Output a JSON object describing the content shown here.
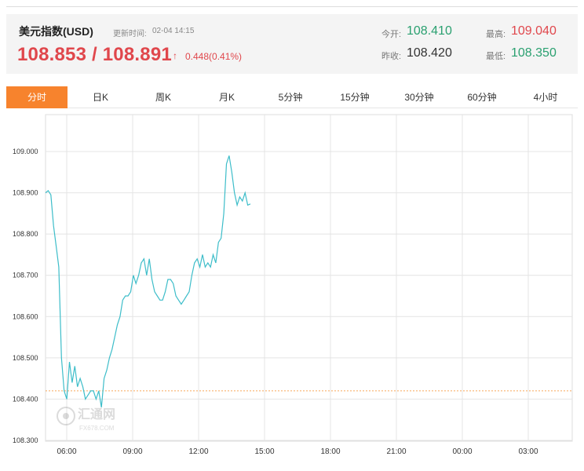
{
  "header": {
    "title": "美元指数(USD)",
    "update_label": "更新时间:",
    "update_time": "02-04 14:15",
    "price": "108.853 / 108.891",
    "arrow": "↑",
    "change": "0.448(0.41%)"
  },
  "stats": {
    "open_label": "今开:",
    "open_value": "108.410",
    "prev_close_label": "昨收:",
    "prev_close_value": "108.420",
    "high_label": "最高:",
    "high_value": "109.040",
    "low_label": "最低:",
    "low_value": "108.350"
  },
  "tabs": [
    "分时",
    "日K",
    "周K",
    "月K",
    "5分钟",
    "15分钟",
    "30分钟",
    "60分钟",
    "4小时"
  ],
  "active_tab": 0,
  "colors": {
    "accent": "#f7832d",
    "line": "#3dbdc9",
    "up": "#e0474c",
    "down": "#2aa070",
    "ref_line": "#f7a85a"
  },
  "watermark": {
    "text": "汇通网",
    "sub": "FX678.COM"
  },
  "chart_data": {
    "type": "line",
    "title": "",
    "xlabel": "",
    "ylabel": "",
    "x_ticks": [
      "06:00",
      "09:00",
      "12:00",
      "15:00",
      "18:00",
      "21:00",
      "00:00",
      "03:00"
    ],
    "y_ticks": [
      "108.300",
      "108.400",
      "108.500",
      "108.600",
      "108.700",
      "108.800",
      "108.900",
      "109.000"
    ],
    "ylim": [
      108.3,
      109.0
    ],
    "reference_line": 108.42,
    "grid": true,
    "series": [
      {
        "values": [
          108.9,
          108.905,
          108.895,
          108.82,
          108.77,
          108.72,
          108.5,
          108.42,
          108.4,
          108.49,
          108.44,
          108.48,
          108.43,
          108.45,
          108.43,
          108.4,
          108.41,
          108.42,
          108.42,
          108.4,
          108.42,
          108.38,
          108.45,
          108.47,
          108.5,
          108.52,
          108.55,
          108.58,
          108.6,
          108.64,
          108.65,
          108.65,
          108.66,
          108.7,
          108.68,
          108.7,
          108.73,
          108.74,
          108.7,
          108.74,
          108.69,
          108.66,
          108.65,
          108.64,
          108.64,
          108.66,
          108.69,
          108.69,
          108.68,
          108.65,
          108.64,
          108.63,
          108.64,
          108.65,
          108.66,
          108.7,
          108.73,
          108.74,
          108.72,
          108.75,
          108.72,
          108.73,
          108.72,
          108.75,
          108.73,
          108.78,
          108.79,
          108.85,
          108.97,
          108.99,
          108.95,
          108.9,
          108.87,
          108.89,
          108.88,
          108.9,
          108.87,
          108.873
        ]
      }
    ]
  }
}
